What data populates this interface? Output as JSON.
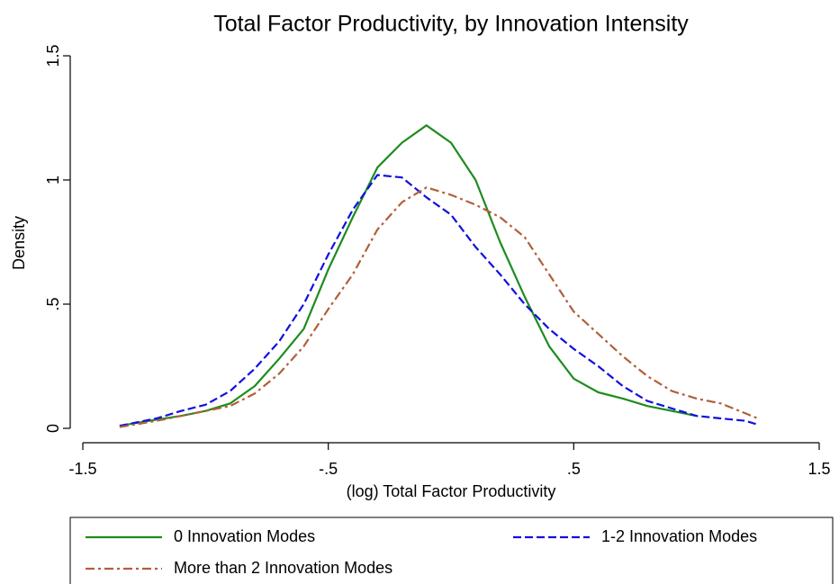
{
  "chart_data": {
    "type": "line",
    "title": "Total Factor Productivity, by Innovation Intensity",
    "xlabel": "(log) Total Factor Productivity",
    "ylabel": "Density",
    "x": [
      -1.35,
      -1.2,
      -1.1,
      -1.0,
      -0.9,
      -0.8,
      -0.7,
      -0.6,
      -0.5,
      -0.4,
      -0.3,
      -0.2,
      -0.1,
      0,
      0.1,
      0.2,
      0.3,
      0.4,
      0.5,
      0.6,
      0.7,
      0.8,
      0.9,
      1.0,
      1.1,
      1.2,
      1.25
    ],
    "series": [
      {
        "name": "0 Innovation Modes",
        "color": "#1e8c1e",
        "dash": "solid",
        "values": [
          0.01,
          0.035,
          0.05,
          0.07,
          0.1,
          0.17,
          0.28,
          0.4,
          0.64,
          0.85,
          1.05,
          1.15,
          1.22,
          1.15,
          1.0,
          0.75,
          0.53,
          0.33,
          0.2,
          0.145,
          0.12,
          0.09,
          0.07,
          0.05,
          null,
          null,
          null
        ]
      },
      {
        "name": "1-2 Innovation Modes",
        "color": "#1010e0",
        "dash": "dash",
        "values": [
          0.01,
          0.04,
          0.07,
          0.095,
          0.15,
          0.24,
          0.35,
          0.5,
          0.7,
          0.88,
          1.02,
          1.01,
          0.93,
          0.86,
          0.73,
          0.62,
          0.5,
          0.4,
          0.32,
          0.25,
          0.17,
          0.11,
          0.08,
          0.05,
          0.04,
          0.03,
          0.015
        ]
      },
      {
        "name": "More than 2 Innovation Modes",
        "color": "#b0603a",
        "dash": "dashdot",
        "values": [
          0.005,
          0.03,
          0.05,
          0.07,
          0.09,
          0.14,
          0.22,
          0.33,
          0.48,
          0.62,
          0.8,
          0.91,
          0.97,
          0.94,
          0.9,
          0.85,
          0.77,
          0.62,
          0.47,
          0.38,
          0.29,
          0.21,
          0.15,
          0.12,
          0.1,
          0.06,
          0.04
        ]
      }
    ],
    "xlim": [
      -1.5,
      1.5
    ],
    "xticks": [
      -1.5,
      {
        "value": -0.5,
        "label": "-.5"
      },
      {
        "value": 0.5,
        "label": ".5"
      },
      1.5
    ],
    "ylim": [
      0,
      1.5
    ],
    "yticks": [
      0,
      {
        "value": 0.5,
        "label": ".5"
      },
      1,
      1.5
    ],
    "grid": false,
    "legend": "bottom"
  }
}
